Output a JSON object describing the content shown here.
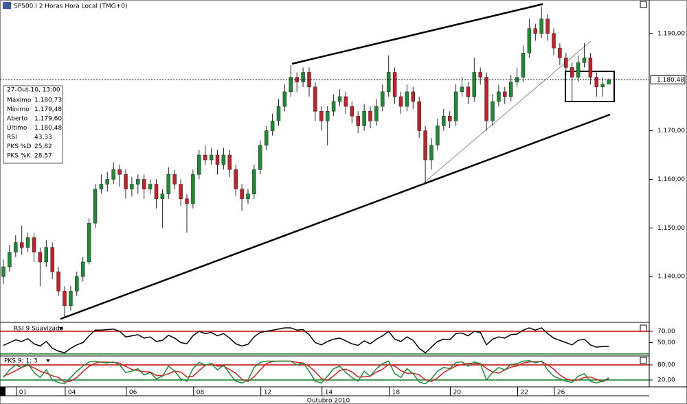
{
  "chart_data": [
    {
      "type": "candlestick",
      "title": "SP500.I 2 Horas Hora Local (TMG+0)",
      "xlabel": "Outubro 2010",
      "categories": [
        null,
        null,
        null,
        "01",
        null,
        null,
        null,
        null,
        null,
        null,
        null,
        "04",
        null,
        null,
        null,
        null,
        null,
        null,
        null,
        null,
        null,
        "06",
        null,
        null,
        null,
        null,
        null,
        null,
        null,
        null,
        null,
        null,
        "08",
        null,
        null,
        null,
        null,
        null,
        null,
        null,
        null,
        null,
        null,
        "12",
        null,
        null,
        null,
        null,
        null,
        null,
        null,
        null,
        null,
        "14",
        null,
        null,
        null,
        null,
        null,
        null,
        null,
        null,
        null,
        null,
        "18",
        null,
        null,
        null,
        null,
        null,
        null,
        null,
        null,
        null,
        "20",
        null,
        null,
        null,
        null,
        null,
        null,
        null,
        null,
        null,
        null,
        "22",
        null,
        null,
        null,
        null,
        null,
        "26",
        null,
        null,
        null,
        null,
        null,
        null,
        null,
        null
      ],
      "open": [
        1140,
        1142,
        1145,
        1147,
        1146,
        1148,
        1145,
        1143,
        1146,
        1141,
        1137,
        1134,
        1137,
        1140,
        1143,
        1151,
        1158,
        1159,
        1160,
        1162,
        1161,
        1158,
        1159,
        1160,
        1158,
        1159,
        1156,
        1157,
        1161,
        1159,
        1156,
        1155,
        1161,
        1165,
        1164,
        1165,
        1163,
        1165,
        1162,
        1158,
        1156,
        1157,
        1162,
        1167,
        1170,
        1172,
        1175,
        1178,
        1181,
        1180,
        1182,
        1179,
        1174,
        1172,
        1174,
        1176,
        1177,
        1175,
        1173,
        1171,
        1174,
        1172,
        1175,
        1178,
        1182,
        1177,
        1175,
        1178,
        1176,
        1170,
        1164,
        1167,
        1171,
        1173,
        1172,
        1178,
        1179,
        1177,
        1182,
        1181,
        1172,
        1176,
        1178,
        1177,
        1180,
        1181,
        1186,
        1191,
        1190,
        1193,
        1190,
        1187,
        1185,
        1183,
        1181,
        1184,
        1185,
        1181,
        1179,
        1179.6
      ],
      "high": [
        1143.5,
        1146.5,
        1148.5,
        1150.5,
        1149,
        1149,
        1146,
        1147.5,
        1147,
        1142,
        1138,
        1138,
        1141,
        1144,
        1152,
        1159,
        1161,
        1161.5,
        1163.5,
        1163,
        1162,
        1160.5,
        1161,
        1161,
        1160,
        1160,
        1158,
        1162.5,
        1162,
        1160,
        1157,
        1162,
        1166,
        1167,
        1166.5,
        1166,
        1166.5,
        1166,
        1163,
        1159,
        1158,
        1163,
        1168,
        1171,
        1173.5,
        1176.5,
        1179.5,
        1183.5,
        1182,
        1183,
        1183,
        1180,
        1175,
        1175,
        1177.5,
        1178.5,
        1178,
        1176,
        1174,
        1175.5,
        1175,
        1176.5,
        1179.5,
        1185.5,
        1183,
        1178,
        1179.5,
        1179,
        1177,
        1171,
        1168.5,
        1172.5,
        1174.5,
        1174,
        1179.5,
        1181,
        1180,
        1185,
        1183,
        1182,
        1177.5,
        1179.5,
        1179,
        1181.5,
        1183,
        1187.5,
        1193,
        1192,
        1195.5,
        1194,
        1191,
        1188,
        1186,
        1184,
        1185.5,
        1188,
        1186,
        1182,
        1181,
        1180.73
      ],
      "low": [
        1138.5,
        1141,
        1144,
        1144.5,
        1145,
        1143,
        1138,
        1142,
        1139.5,
        1136,
        1131.5,
        1133,
        1136,
        1139,
        1142.5,
        1150,
        1157,
        1157.5,
        1159,
        1158.5,
        1156,
        1156.5,
        1157,
        1156,
        1157,
        1154,
        1150,
        1156,
        1158,
        1154.5,
        1149,
        1154,
        1160,
        1163,
        1163,
        1161,
        1162,
        1160.5,
        1156.5,
        1153.5,
        1155,
        1156,
        1161,
        1166,
        1169,
        1171,
        1174,
        1177,
        1178,
        1179,
        1177,
        1172,
        1170,
        1167,
        1173,
        1175,
        1173.5,
        1171.5,
        1169.5,
        1170,
        1170.5,
        1171,
        1174,
        1177,
        1175.5,
        1173.5,
        1174,
        1174.5,
        1168.5,
        1159,
        1162,
        1166,
        1170,
        1170.5,
        1171,
        1177,
        1175.5,
        1176,
        1179.5,
        1170,
        1171,
        1175,
        1175.5,
        1176,
        1179,
        1180,
        1185,
        1188.5,
        1189,
        1188.5,
        1185.5,
        1183.5,
        1181.5,
        1176,
        1180,
        1183,
        1179.5,
        1177,
        1177,
        1179.48
      ],
      "close": [
        1142,
        1145,
        1147,
        1146,
        1148,
        1145,
        1143,
        1146,
        1141,
        1137,
        1134,
        1137,
        1140,
        1143,
        1151,
        1158,
        1159,
        1160,
        1162,
        1161,
        1158,
        1159,
        1160,
        1158,
        1159,
        1156,
        1157,
        1161,
        1159,
        1156,
        1155,
        1161,
        1165,
        1164,
        1165,
        1163,
        1165,
        1162,
        1158,
        1156,
        1157,
        1162,
        1167,
        1170,
        1172,
        1175,
        1178,
        1181,
        1180,
        1182,
        1179,
        1174,
        1172,
        1174,
        1176,
        1177,
        1175,
        1173,
        1171,
        1174,
        1172,
        1175,
        1178,
        1182,
        1177,
        1175,
        1178,
        1176,
        1170,
        1164,
        1167,
        1171,
        1173,
        1172,
        1178,
        1179,
        1177,
        1182,
        1181,
        1172,
        1176,
        1178,
        1177,
        1180,
        1181,
        1186,
        1191,
        1190,
        1193,
        1190,
        1187,
        1185,
        1183,
        1181,
        1184,
        1185,
        1181,
        1179,
        1179.6,
        1180.48
      ],
      "up_color": "#1f8a34",
      "down_color": "#c3202a",
      "ylim": [
        1131,
        1196.6
      ],
      "yticks": [
        {
          "value": 1190,
          "label": "1.190,00"
        },
        {
          "value": 1170,
          "label": "1.170,00"
        },
        {
          "value": 1160,
          "label": "1.160,00"
        },
        {
          "value": 1150,
          "label": "1.150,00"
        },
        {
          "value": 1140,
          "label": "1.140,00"
        }
      ],
      "last_price": {
        "value": 1180.48,
        "label": "1.180,48"
      }
    },
    {
      "type": "line",
      "title": "RSI 9 Suavizado",
      "series": [
        {
          "color": "#000000",
          "values": [
            45,
            50,
            55,
            52,
            57,
            48,
            44,
            52,
            40,
            35,
            32,
            40,
            46,
            50,
            62,
            72,
            72,
            73,
            74,
            70,
            60,
            62,
            64,
            58,
            60,
            52,
            54,
            63,
            58,
            50,
            48,
            62,
            70,
            66,
            68,
            62,
            66,
            58,
            48,
            44,
            47,
            60,
            68,
            70,
            72,
            74,
            76,
            76,
            72,
            73,
            64,
            50,
            46,
            52,
            56,
            58,
            53,
            48,
            45,
            53,
            48,
            56,
            62,
            70,
            56,
            52,
            60,
            54,
            40,
            32,
            42,
            52,
            56,
            55,
            66,
            67,
            62,
            70,
            68,
            46,
            56,
            60,
            58,
            64,
            65,
            72,
            76,
            72,
            76,
            66,
            58,
            54,
            50,
            46,
            54,
            56,
            46,
            42,
            43,
            43.33
          ]
        }
      ],
      "ylim": [
        27.6,
        83.3
      ],
      "yticks": [
        {
          "value": 70,
          "label": "70,00"
        },
        {
          "value": 50,
          "label": "50,00"
        }
      ],
      "levels": [
        {
          "value": 70,
          "color": "#c00000"
        },
        {
          "value": 30,
          "color": "#0a7a24"
        }
      ]
    },
    {
      "type": "line",
      "title": "PKS 9; 1; 3",
      "series": [
        {
          "color": "#d02020",
          "values": [
            35,
            45,
            57,
            70,
            78,
            68,
            55,
            47,
            37,
            30,
            12,
            15,
            30,
            53,
            74,
            87,
            92,
            91,
            90,
            87,
            74,
            62,
            57,
            53,
            52,
            38,
            37,
            45,
            55,
            52,
            32,
            35,
            57,
            78,
            85,
            75,
            75,
            62,
            47,
            23,
            14,
            33,
            60,
            85,
            93,
            95,
            95,
            95,
            90,
            88,
            74,
            53,
            26,
            19,
            36,
            58,
            63,
            52,
            32,
            33,
            35,
            52,
            62,
            82,
            75,
            57,
            47,
            47,
            41,
            21,
            14,
            28,
            50,
            63,
            75,
            82,
            86,
            86,
            84,
            66,
            52,
            47,
            60,
            71,
            76,
            87,
            92,
            93,
            93,
            81,
            63,
            40,
            25,
            17,
            20,
            30,
            32,
            23,
            13,
            25.82
          ]
        },
        {
          "color": "#1e8a3a",
          "values": [
            30,
            60,
            80,
            70,
            85,
            50,
            30,
            60,
            20,
            10,
            5,
            30,
            55,
            75,
            92,
            95,
            90,
            88,
            92,
            80,
            50,
            55,
            65,
            40,
            50,
            25,
            35,
            75,
            55,
            25,
            15,
            65,
            90,
            80,
            85,
            60,
            80,
            45,
            15,
            8,
            20,
            70,
            90,
            95,
            95,
            95,
            95,
            95,
            80,
            88,
            55,
            15,
            8,
            35,
            65,
            75,
            50,
            30,
            15,
            55,
            35,
            65,
            85,
            95,
            45,
            30,
            65,
            45,
            12,
            5,
            25,
            55,
            70,
            65,
            90,
            92,
            75,
            92,
            85,
            20,
            50,
            70,
            60,
            82,
            85,
            95,
            97,
            88,
            95,
            60,
            35,
            25,
            15,
            10,
            35,
            45,
            15,
            8,
            15,
            28.57
          ]
        }
      ],
      "ylim": [
        -4.5,
        112.7
      ],
      "yticks": [
        {
          "value": 80,
          "label": "80,00"
        },
        {
          "value": 20,
          "label": "20,00"
        }
      ],
      "levels": [
        {
          "value": 80,
          "color": "#c00000"
        },
        {
          "value": 20,
          "color": "#0a7a24"
        }
      ]
    }
  ],
  "info_box": {
    "title": "27-Out-10, 13:00",
    "rows": [
      {
        "label": "Máximo",
        "value": "1.180,73",
        "color": "#000000"
      },
      {
        "label": "Mínimo",
        "value": "1.179,48",
        "color": "#000000"
      },
      {
        "label": "Aberto",
        "value": "1.179,60",
        "color": "#000000"
      },
      {
        "label": "Último",
        "value": "1.180,48",
        "color": "#000000"
      },
      {
        "label": "RSI",
        "value": "43,33",
        "color": "#000000"
      },
      {
        "label": "PKS %D",
        "value": "25,82",
        "color": "#c3202a"
      },
      {
        "label": "PKS %K",
        "value": "28,57",
        "color": "#2a8a5a"
      }
    ]
  }
}
